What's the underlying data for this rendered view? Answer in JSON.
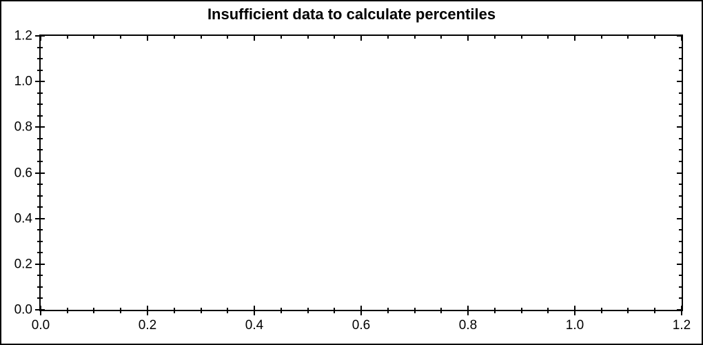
{
  "chart_data": {
    "type": "scatter",
    "title": "Insufficient data to calculate percentiles",
    "series": [],
    "xlabel": "",
    "ylabel": "",
    "xlim": [
      0,
      1.2
    ],
    "ylim": [
      0,
      1.2
    ],
    "x_major_ticks": [
      0,
      0.2,
      0.4,
      0.6,
      0.8,
      1.0,
      1.2
    ],
    "x_tick_labels": [
      "0.0",
      "0.2",
      "0.4",
      "0.6",
      "0.8",
      "1.0",
      "1.2"
    ],
    "y_major_ticks": [
      0,
      0.2,
      0.4,
      0.6,
      0.8,
      1.0,
      1.2
    ],
    "y_tick_labels": [
      "0.0",
      "0.2",
      "0.4",
      "0.6",
      "0.8",
      "1.0",
      "1.2"
    ],
    "minor_tick_step": 0.05,
    "grid": false,
    "legend": false,
    "frame": "box",
    "tick_style": {
      "bottom_left": "cross",
      "top_right": "inward"
    }
  },
  "colors": {
    "background": "#ffffff",
    "axis": "#000000",
    "text": "#000000",
    "border": "#000000"
  }
}
